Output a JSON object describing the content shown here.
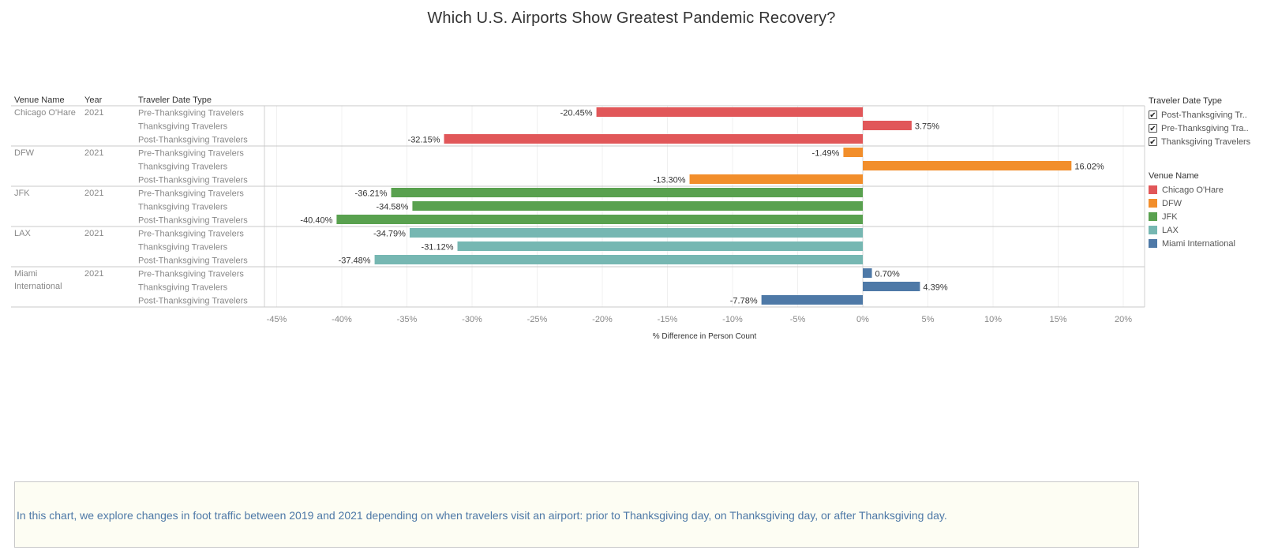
{
  "title": "Which U.S. Airports Show Greatest Pandemic Recovery?",
  "headers": {
    "venue": "Venue Name",
    "year": "Year",
    "type": "Traveler Date Type"
  },
  "chart_data": {
    "type": "bar",
    "orientation": "horizontal",
    "xlabel": "% Difference in Person Count",
    "xlim": [
      -47,
      21
    ],
    "xticks": [
      -45,
      -40,
      -35,
      -30,
      -25,
      -20,
      -15,
      -10,
      -5,
      0,
      5,
      10,
      15,
      20
    ],
    "xtick_labels": [
      "-45%",
      "-40%",
      "-35%",
      "-30%",
      "-25%",
      "-20%",
      "-15%",
      "-10%",
      "-5%",
      "0%",
      "5%",
      "10%",
      "15%",
      "20%"
    ],
    "grid": true,
    "groups": [
      {
        "venue": "Chicago O'Hare",
        "year": "2021",
        "color": "#e15759",
        "bars": [
          {
            "type": "Pre-Thanksgiving Travelers",
            "value": -20.45,
            "label": "-20.45%"
          },
          {
            "type": "Thanksgiving Travelers",
            "value": 3.75,
            "label": "3.75%"
          },
          {
            "type": "Post-Thanksgiving Travelers",
            "value": -32.15,
            "label": "-32.15%"
          }
        ]
      },
      {
        "venue": "DFW",
        "year": "2021",
        "color": "#f28e2b",
        "bars": [
          {
            "type": "Pre-Thanksgiving Travelers",
            "value": -1.49,
            "label": "-1.49%"
          },
          {
            "type": "Thanksgiving Travelers",
            "value": 16.02,
            "label": "16.02%"
          },
          {
            "type": "Post-Thanksgiving Travelers",
            "value": -13.3,
            "label": "-13.30%"
          }
        ]
      },
      {
        "venue": "JFK",
        "year": "2021",
        "color": "#59a14f",
        "bars": [
          {
            "type": "Pre-Thanksgiving Travelers",
            "value": -36.21,
            "label": "-36.21%"
          },
          {
            "type": "Thanksgiving Travelers",
            "value": -34.58,
            "label": "-34.58%"
          },
          {
            "type": "Post-Thanksgiving Travelers",
            "value": -40.4,
            "label": "-40.40%"
          }
        ]
      },
      {
        "venue": "LAX",
        "year": "2021",
        "color": "#76b7b2",
        "bars": [
          {
            "type": "Pre-Thanksgiving Travelers",
            "value": -34.79,
            "label": "-34.79%"
          },
          {
            "type": "Thanksgiving Travelers",
            "value": -31.12,
            "label": "-31.12%"
          },
          {
            "type": "Post-Thanksgiving Travelers",
            "value": -37.48,
            "label": "-37.48%"
          }
        ]
      },
      {
        "venue": "Miami International",
        "year": "2021",
        "color": "#4e79a7",
        "bars": [
          {
            "type": "Pre-Thanksgiving Travelers",
            "value": 0.7,
            "label": "0.70%"
          },
          {
            "type": "Thanksgiving Travelers",
            "value": 4.39,
            "label": "4.39%"
          },
          {
            "type": "Post-Thanksgiving Travelers",
            "value": -7.78,
            "label": "-7.78%"
          }
        ]
      }
    ]
  },
  "legend_type": {
    "title": "Traveler Date Type",
    "items": [
      {
        "label": "Post-Thanksgiving Tr..",
        "checked": true
      },
      {
        "label": "Pre-Thanksgiving Tra..",
        "checked": true
      },
      {
        "label": "Thanksgiving Travelers",
        "checked": true
      }
    ]
  },
  "legend_venue": {
    "title": "Venue Name",
    "items": [
      {
        "label": "Chicago O'Hare",
        "color": "#e15759"
      },
      {
        "label": "DFW",
        "color": "#f28e2b"
      },
      {
        "label": "JFK",
        "color": "#59a14f"
      },
      {
        "label": "LAX",
        "color": "#76b7b2"
      },
      {
        "label": "Miami International",
        "color": "#4e79a7"
      }
    ]
  },
  "caption": "In this chart, we explore changes in foot traffic between 2019 and 2021 depending on when travelers visit an airport: prior to Thanksgiving day, on Thanksgiving day, or after Thanksgiving day."
}
